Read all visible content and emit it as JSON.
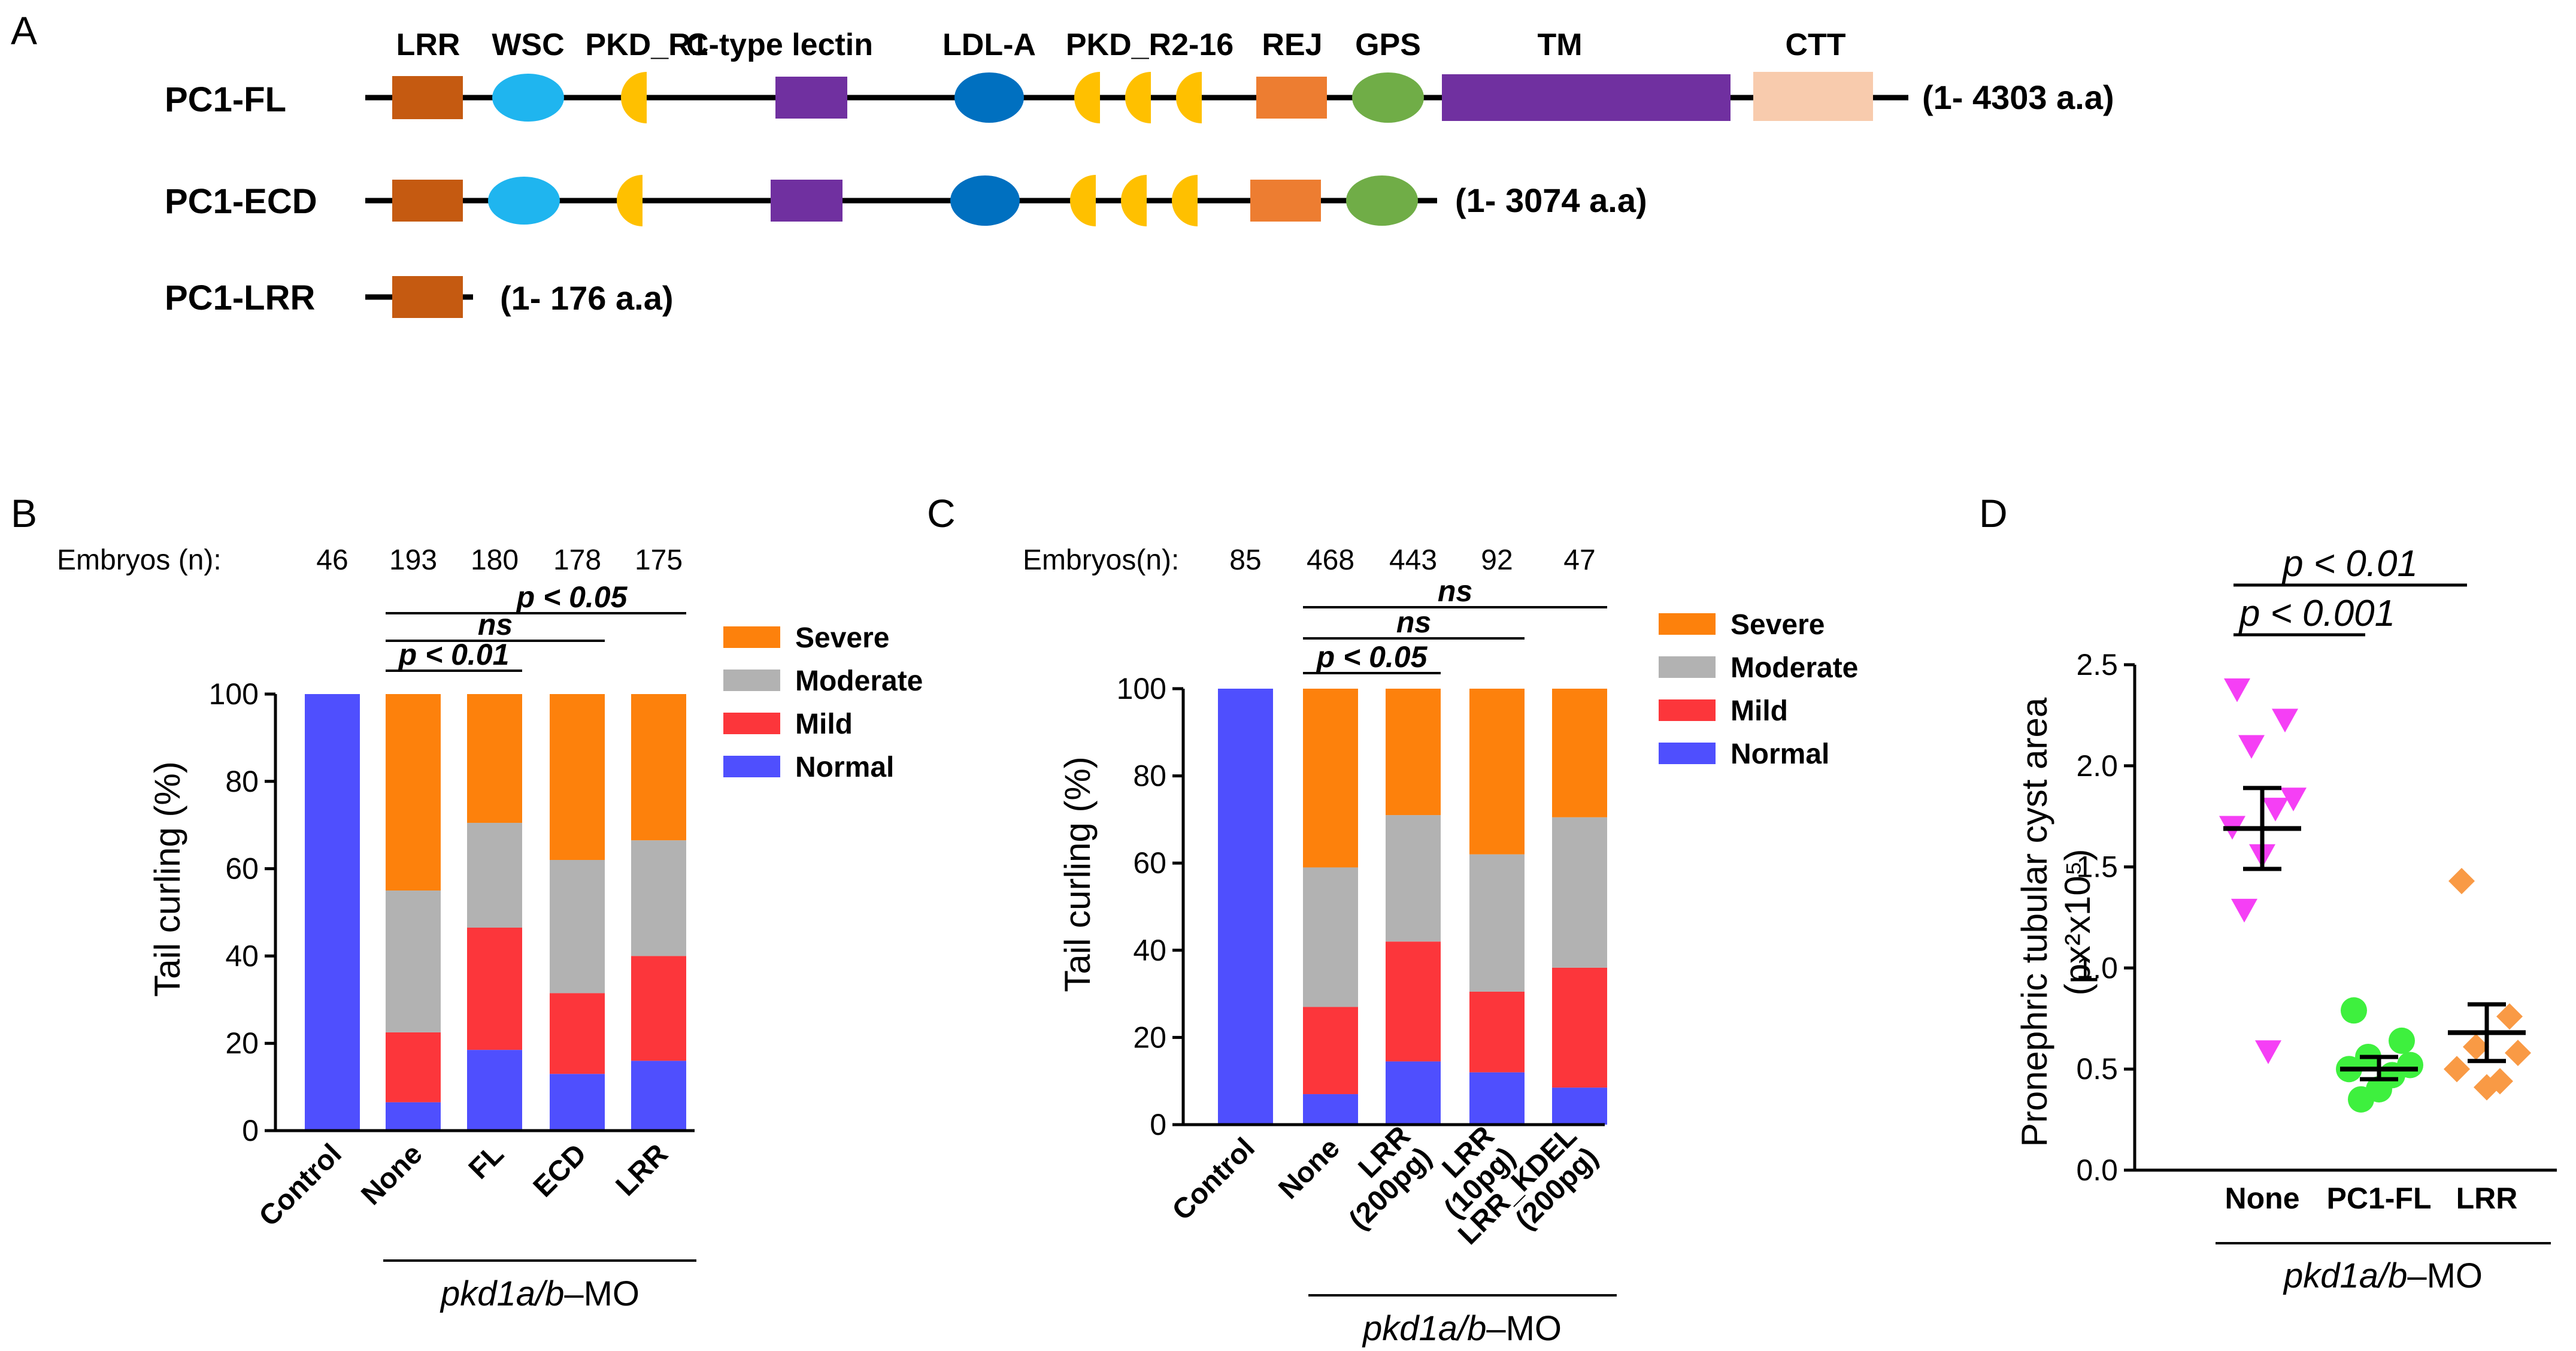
{
  "panel_a": {
    "letter": "A",
    "domain_labels": [
      "LRR",
      "WSC",
      "PKD_R1",
      "C-type lectin",
      "LDL-A",
      "PKD_R2-16",
      "REJ",
      "GPS",
      "TM",
      "CTT"
    ],
    "constructs": [
      {
        "name": "PC1-FL",
        "range": "(1- 4303 a.a)"
      },
      {
        "name": "PC1-ECD",
        "range": "(1- 3074 a.a)"
      },
      {
        "name": "PC1-LRR",
        "range": "(1- 176 a.a)"
      }
    ],
    "colors": {
      "line": "#000000",
      "LRR": "#c55a11",
      "WSC": "#1fb5ef",
      "PKD": "#ffc000",
      "lectin": "#7030a0",
      "LDL": "#0070c0",
      "REJ": "#ed7d31",
      "GPS": "#70ad47",
      "TM": "#7030a0",
      "CTT": "#f8cbad"
    }
  },
  "chart_data": [
    {
      "panel": "B",
      "type": "bar",
      "stacked": true,
      "title": "",
      "ylabel": "Tail curling (%)",
      "xlabel": "",
      "ylim": [
        0,
        100
      ],
      "yticks": [
        "0",
        "20",
        "40",
        "60",
        "80",
        "100"
      ],
      "categories": [
        "Control",
        "None",
        "FL",
        "ECD",
        "LRR"
      ],
      "embryo_label": "Embryos (n):",
      "embryo_counts": [
        "46",
        "193",
        "180",
        "178",
        "175"
      ],
      "series": [
        {
          "name": "Normal",
          "color": "#4f4ffe",
          "values": [
            100,
            6.5,
            18.5,
            13,
            16
          ]
        },
        {
          "name": "Mild",
          "color": "#fc363b",
          "values": [
            0,
            16,
            28,
            18.5,
            24
          ]
        },
        {
          "name": "Moderate",
          "color": "#b2b2b2",
          "values": [
            0,
            32.5,
            24,
            30.5,
            26.5
          ]
        },
        {
          "name": "Severe",
          "color": "#fd810c",
          "values": [
            0,
            45,
            29.5,
            38,
            33.5
          ]
        }
      ],
      "legend_order": [
        "Severe",
        "Moderate",
        "Mild",
        "Normal"
      ],
      "significance": [
        {
          "label": "p < 0.05",
          "from": "None",
          "to": "LRR"
        },
        {
          "label": "ns",
          "from": "None",
          "to": "ECD"
        },
        {
          "label": "p < 0.01",
          "from": "None",
          "to": "FL"
        }
      ],
      "group_label": {
        "italic": "pkd1a/b",
        "rest": "–MO"
      }
    },
    {
      "panel": "C",
      "type": "bar",
      "stacked": true,
      "title": "",
      "ylabel": "Tail curling (%)",
      "xlabel": "",
      "ylim": [
        0,
        100
      ],
      "yticks": [
        "0",
        "20",
        "40",
        "60",
        "80",
        "100"
      ],
      "categories": [
        "Control",
        "None",
        "LRR (200pg)",
        "LRR (10pg)",
        "LRR_KDEL (200pg)"
      ],
      "category_lines": [
        [
          "Control"
        ],
        [
          "None"
        ],
        [
          "LRR",
          "(200pg)"
        ],
        [
          "LRR",
          "(10pg)"
        ],
        [
          "LRR_KDEL",
          "(200pg)"
        ]
      ],
      "embryo_label": "Embryos(n):",
      "embryo_counts": [
        "85",
        "468",
        "443",
        "92",
        "47"
      ],
      "series": [
        {
          "name": "Normal",
          "color": "#4f4ffe",
          "values": [
            100,
            7,
            14.5,
            12,
            8.5
          ]
        },
        {
          "name": "Mild",
          "color": "#fc363b",
          "values": [
            0,
            20,
            27.5,
            18.5,
            27.5
          ]
        },
        {
          "name": "Moderate",
          "color": "#b2b2b2",
          "values": [
            0,
            32,
            29,
            31.5,
            34.5
          ]
        },
        {
          "name": "Severe",
          "color": "#fd810c",
          "values": [
            0,
            41,
            29,
            38,
            29.5
          ]
        }
      ],
      "legend_order": [
        "Severe",
        "Moderate",
        "Mild",
        "Normal"
      ],
      "significance": [
        {
          "label": "ns",
          "from": "None",
          "to": "LRR_KDEL (200pg)"
        },
        {
          "label": "ns",
          "from": "None",
          "to": "LRR (10pg)"
        },
        {
          "label": "p < 0.05",
          "from": "None",
          "to": "LRR (200pg)"
        }
      ],
      "group_label": {
        "italic": "pkd1a/b",
        "rest": "–MO"
      }
    },
    {
      "panel": "D",
      "type": "scatter",
      "title": "",
      "ylabel_lines": [
        "Pronephric tubular cyst area",
        "(px²x10⁵)"
      ],
      "xlabel": "",
      "ylim": [
        0,
        2.5
      ],
      "yticks": [
        "0.0",
        "0.5",
        "1.0",
        "1.5",
        "2.0",
        "2.5"
      ],
      "categories": [
        "None",
        "PC1-FL",
        "LRR"
      ],
      "groups": [
        {
          "name": "None",
          "marker": "triangle-down",
          "color": "#f53ff5",
          "points": [
            2.38,
            2.23,
            2.1,
            1.84,
            1.7,
            1.79,
            1.56,
            1.29,
            0.59
          ],
          "mean": 1.69,
          "sem_low": 1.49,
          "sem_high": 1.89
        },
        {
          "name": "PC1-FL",
          "marker": "circle",
          "color": "#3ef03e",
          "points": [
            0.79,
            0.64,
            0.56,
            0.52,
            0.5,
            0.47,
            0.4,
            0.35
          ],
          "mean": 0.5,
          "sem_low": 0.45,
          "sem_high": 0.56
        },
        {
          "name": "LRR",
          "marker": "diamond",
          "color": "#f99a45",
          "points": [
            1.43,
            0.76,
            0.61,
            0.58,
            0.5,
            0.44,
            0.41
          ],
          "mean": 0.68,
          "sem_low": 0.54,
          "sem_high": 0.82
        }
      ],
      "significance": [
        {
          "label": "p < 0.01",
          "from": "None",
          "to": "LRR"
        },
        {
          "label": "p < 0.001",
          "from": "None",
          "to": "PC1-FL"
        }
      ],
      "group_label": {
        "italic": "pkd1a/b",
        "rest": "–MO"
      }
    }
  ]
}
